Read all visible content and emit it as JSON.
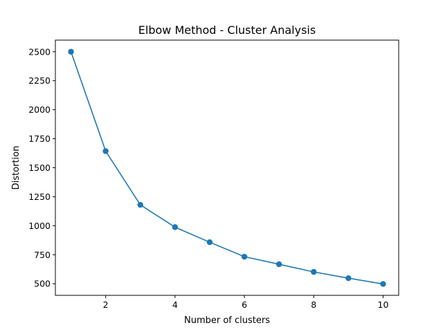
{
  "chart_data": {
    "type": "line",
    "title": "Elbow Method - Cluster Analysis",
    "xlabel": "Number of clusters",
    "ylabel": "Distortion",
    "x": [
      1,
      2,
      3,
      4,
      5,
      6,
      7,
      8,
      9,
      10
    ],
    "series": [
      {
        "values": [
          2500,
          1643,
          1180,
          988,
          858,
          733,
          668,
          602,
          548,
          498
        ]
      }
    ],
    "xticks": [
      2,
      4,
      6,
      8,
      10
    ],
    "yticks": [
      500,
      750,
      1000,
      1250,
      1500,
      1750,
      2000,
      2250,
      2500
    ],
    "xlim": [
      0.55,
      10.45
    ],
    "ylim": [
      400,
      2600
    ],
    "grid": false,
    "markers": "circle",
    "color": "#1f77b4"
  }
}
